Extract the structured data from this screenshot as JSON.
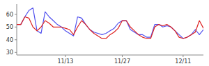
{
  "chart_data": {
    "type": "line",
    "categories": [
      null,
      null,
      null,
      null,
      null,
      null,
      null,
      null,
      null,
      null,
      null,
      null,
      "11/13",
      null,
      null,
      null,
      null,
      null,
      null,
      null,
      null,
      null,
      null,
      null,
      null,
      null,
      "11/27",
      null,
      null,
      null,
      null,
      null,
      null,
      null,
      null,
      null,
      null,
      null,
      null,
      null,
      null,
      "12/11",
      null,
      null,
      null,
      null,
      null
    ],
    "series": [
      {
        "color": "#5050ee",
        "values": [
          52,
          52,
          58,
          63,
          65,
          47,
          45,
          62,
          58,
          55,
          52,
          50,
          47,
          45,
          43,
          58,
          57,
          52,
          48,
          46,
          45,
          44,
          45,
          47,
          49,
          53,
          55,
          55,
          48,
          46,
          44,
          44,
          42,
          42,
          52,
          52,
          50,
          51,
          50,
          47,
          44,
          41,
          42,
          44,
          48,
          44,
          48
        ]
      },
      {
        "color": "#dd2222",
        "values": [
          52,
          52,
          58,
          57,
          50,
          47,
          50,
          55,
          53,
          50,
          50,
          50,
          49,
          48,
          44,
          50,
          55,
          52,
          48,
          45,
          43,
          41,
          41,
          44,
          46,
          49,
          55,
          55,
          50,
          47,
          44,
          42,
          41,
          41,
          50,
          52,
          51,
          52,
          50,
          47,
          42,
          41,
          42,
          44,
          46,
          55,
          49
        ]
      }
    ],
    "ylim": [
      28,
      68
    ],
    "yticks": [
      30,
      40,
      50,
      60
    ],
    "grid": false
  }
}
